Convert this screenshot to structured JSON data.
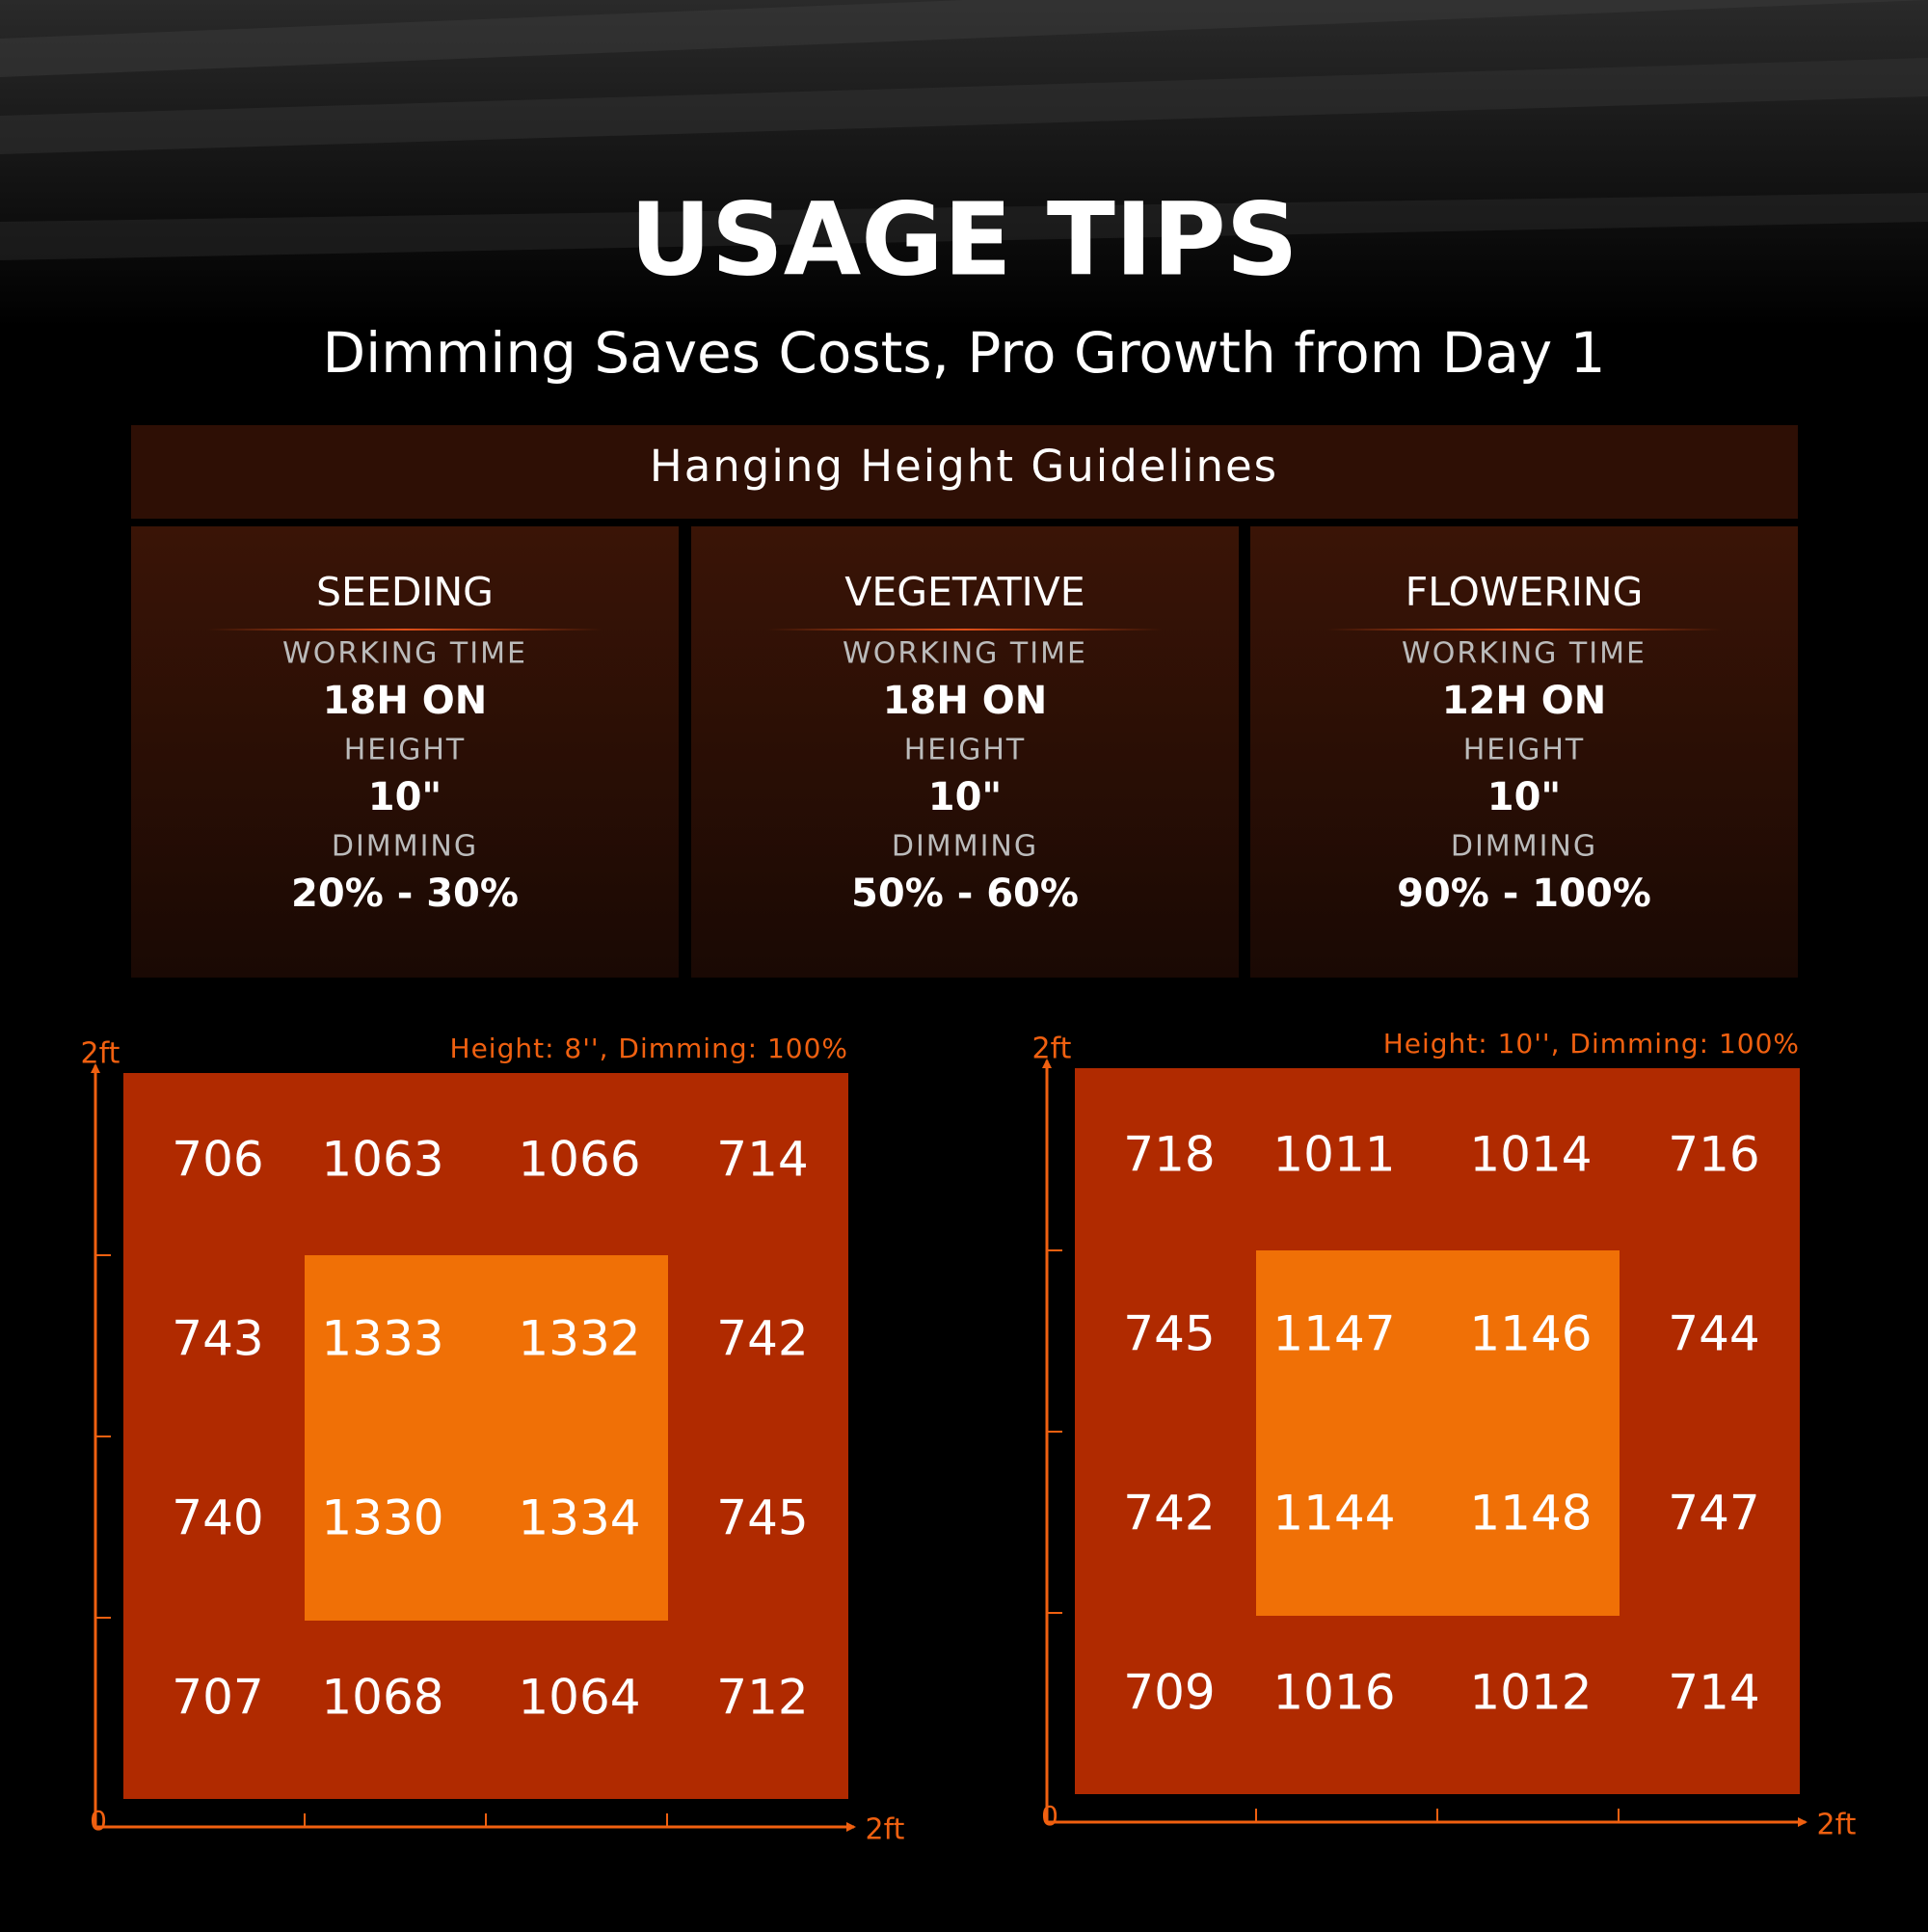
{
  "header": {
    "title": "USAGE TIPS",
    "subtitle": "Dimming Saves Costs, Pro Growth from Day 1"
  },
  "guidelines": {
    "title": "Hanging Height Guidelines",
    "stages": [
      {
        "name": "SEEDING",
        "working_time_label": "WORKING TIME",
        "working_time": "18H ON",
        "height_label": "HEIGHT",
        "height": "10\"",
        "dimming_label": "DIMMING",
        "dimming": "20% - 30%"
      },
      {
        "name": "VEGETATIVE",
        "working_time_label": "WORKING TIME",
        "working_time": "18H ON",
        "height_label": "HEIGHT",
        "height": "10\"",
        "dimming_label": "DIMMING",
        "dimming": "50% - 60%"
      },
      {
        "name": "FLOWERING",
        "working_time_label": "WORKING TIME",
        "working_time": "12H ON",
        "height_label": "HEIGHT",
        "height": "10\"",
        "dimming_label": "DIMMING",
        "dimming": "90% - 100%"
      }
    ]
  },
  "maps": [
    {
      "caption": "Height: 8'', Dimming: 100%",
      "y_axis_label": "2ft",
      "x_axis_label": "2ft",
      "origin_label": "0",
      "rows": [
        [
          706,
          1063,
          1066,
          714
        ],
        [
          743,
          1333,
          1332,
          742
        ],
        [
          740,
          1330,
          1334,
          745
        ],
        [
          707,
          1068,
          1064,
          712
        ]
      ]
    },
    {
      "caption": "Height: 10'', Dimming: 100%",
      "y_axis_label": "2ft",
      "x_axis_label": "2ft",
      "origin_label": "0",
      "rows": [
        [
          718,
          1011,
          1014,
          716
        ],
        [
          745,
          1147,
          1146,
          744
        ],
        [
          742,
          1144,
          1148,
          747
        ],
        [
          709,
          1016,
          1012,
          714
        ]
      ]
    }
  ]
}
